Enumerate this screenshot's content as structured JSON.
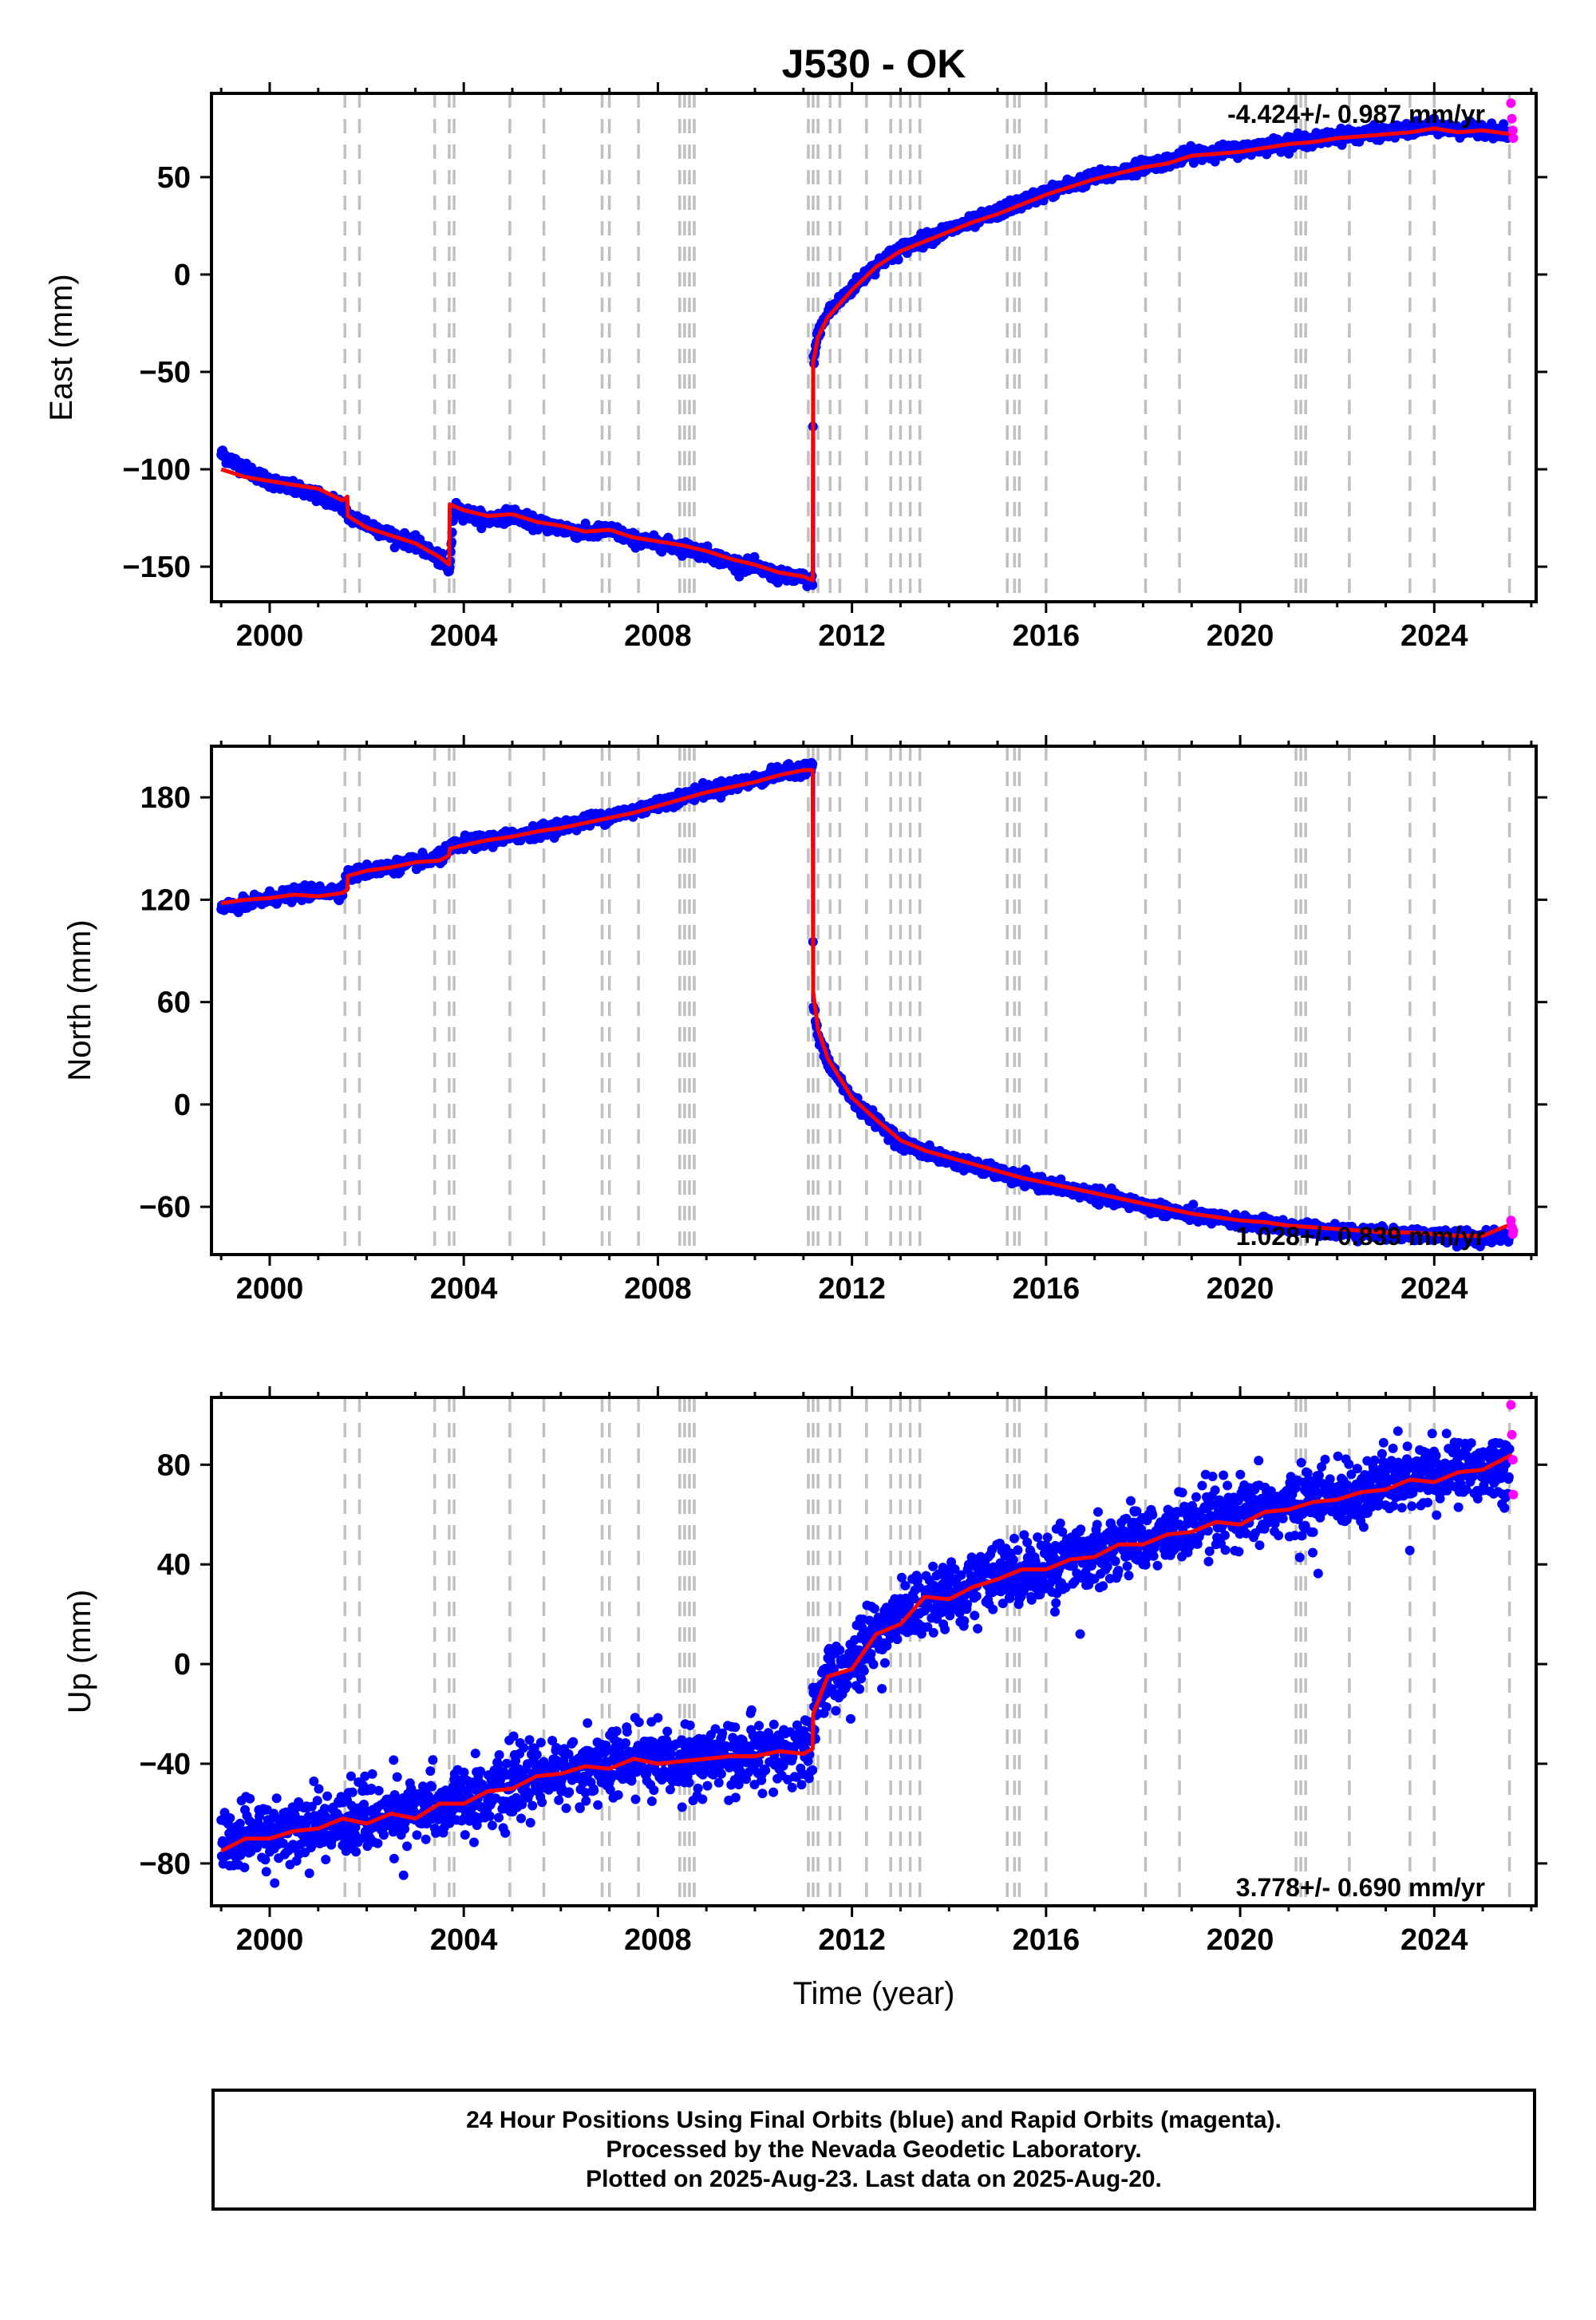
{
  "title": "J530 - OK",
  "colors": {
    "final": "#0000ff",
    "rapid": "#ff00ff",
    "model": "#ff0000",
    "event_line": "#c0c0c0",
    "frame": "#000000"
  },
  "chart_data": [
    {
      "type": "scatter",
      "panel": "east",
      "ylabel": "East (mm)",
      "xlabel": "",
      "xlim": [
        1998.8,
        2026.1
      ],
      "ylim": [
        -168,
        93
      ],
      "x_ticks": [
        2000,
        2004,
        2008,
        2012,
        2016,
        2020,
        2024
      ],
      "y_ticks": [
        -150,
        -100,
        -50,
        0,
        50
      ],
      "rate_label": "-4.424+/- 0.987 mm/yr",
      "series": [
        {
          "name": "Final Orbits",
          "color": "#0000ff",
          "x": [
            1999.0,
            1999.5,
            2000.0,
            2000.5,
            2001.0,
            2001.5,
            2001.6,
            2002.0,
            2002.5,
            2003.0,
            2003.5,
            2003.7,
            2003.8,
            2004.0,
            2004.5,
            2005.0,
            2005.5,
            2006.0,
            2006.5,
            2007.0,
            2007.5,
            2008.0,
            2008.5,
            2009.0,
            2009.5,
            2010.0,
            2010.5,
            2011.0,
            2011.19,
            2011.2,
            2011.3,
            2011.5,
            2012.0,
            2012.5,
            2013.0,
            2013.5,
            2014.0,
            2014.5,
            2015.0,
            2015.5,
            2016.0,
            2016.5,
            2017.0,
            2017.5,
            2018.0,
            2018.5,
            2019.0,
            2019.5,
            2020.0,
            2020.5,
            2021.0,
            2021.5,
            2022.0,
            2022.5,
            2023.0,
            2023.5,
            2024.0,
            2024.5,
            2025.0,
            2025.55
          ],
          "y": [
            -92,
            -100,
            -106,
            -110,
            -114,
            -118,
            -124,
            -128,
            -134,
            -138,
            -146,
            -152,
            -120,
            -122,
            -126,
            -123,
            -128,
            -130,
            -133,
            -131,
            -136,
            -138,
            -140,
            -143,
            -148,
            -150,
            -155,
            -156,
            -158,
            -45,
            -30,
            -20,
            -7,
            5,
            13,
            18,
            23,
            27,
            32,
            37,
            42,
            46,
            50,
            52,
            56,
            58,
            62,
            63,
            64,
            66,
            68,
            69,
            71,
            72,
            73,
            74,
            76,
            74,
            75,
            72
          ]
        },
        {
          "name": "Rapid Orbits",
          "color": "#ff00ff",
          "x": [
            2025.58,
            2025.6,
            2025.62,
            2025.63
          ],
          "y": [
            88,
            80,
            74,
            70
          ]
        }
      ],
      "model": {
        "name": "Model",
        "color": "#ff0000",
        "x": [
          1999.0,
          1999.5,
          2000.0,
          2000.5,
          2001.0,
          2001.5,
          2001.6,
          2001.61,
          2002.0,
          2002.5,
          2003.0,
          2003.5,
          2003.7,
          2003.71,
          2004.0,
          2004.5,
          2005.0,
          2005.5,
          2006.0,
          2006.5,
          2007.0,
          2007.5,
          2008.0,
          2008.5,
          2009.0,
          2009.5,
          2010.0,
          2010.5,
          2011.0,
          2011.19,
          2011.2,
          2011.3,
          2011.5,
          2012.0,
          2012.5,
          2013.0,
          2013.5,
          2014.0,
          2014.5,
          2015.0,
          2015.5,
          2016.0,
          2016.5,
          2017.0,
          2017.5,
          2018.0,
          2018.5,
          2019.0,
          2019.5,
          2020.0,
          2020.5,
          2021.0,
          2021.5,
          2022.0,
          2022.5,
          2023.0,
          2023.5,
          2024.0,
          2024.5,
          2025.0,
          2025.6
        ],
        "y": [
          -100,
          -104,
          -106,
          -108,
          -110,
          -116,
          -114,
          -124,
          -130,
          -134,
          -138,
          -145,
          -149,
          -118,
          -121,
          -124,
          -123,
          -127,
          -129,
          -132,
          -131,
          -135,
          -137,
          -139,
          -142,
          -146,
          -149,
          -153,
          -155,
          -157,
          -45,
          -32,
          -22,
          -8,
          4,
          12,
          17,
          22,
          27,
          31,
          36,
          41,
          45,
          49,
          52,
          55,
          57,
          61,
          62,
          63,
          65,
          67,
          68,
          70,
          71,
          72,
          73,
          75,
          73,
          74,
          72
        ]
      }
    },
    {
      "type": "scatter",
      "panel": "north",
      "ylabel": "North (mm)",
      "xlabel": "",
      "xlim": [
        1998.8,
        2026.1
      ],
      "ylim": [
        -88,
        210
      ],
      "x_ticks": [
        2000,
        2004,
        2008,
        2012,
        2016,
        2020,
        2024
      ],
      "y_ticks": [
        -60,
        0,
        60,
        120,
        180
      ],
      "rate_label": "1.028+/- 0.839 mm/yr",
      "series": [
        {
          "name": "Final Orbits",
          "color": "#0000ff",
          "x": [
            1999.0,
            1999.5,
            2000.0,
            2000.5,
            2001.0,
            2001.5,
            2001.6,
            2002.0,
            2002.5,
            2003.0,
            2003.5,
            2003.7,
            2004.0,
            2004.5,
            2005.0,
            2005.5,
            2006.0,
            2006.5,
            2007.0,
            2007.5,
            2008.0,
            2008.5,
            2009.0,
            2009.5,
            2010.0,
            2010.5,
            2011.0,
            2011.19,
            2011.2,
            2011.3,
            2011.5,
            2012.0,
            2012.5,
            2013.0,
            2013.5,
            2014.0,
            2014.5,
            2015.0,
            2015.5,
            2016.0,
            2016.5,
            2017.0,
            2017.5,
            2018.0,
            2018.5,
            2019.0,
            2019.5,
            2020.0,
            2020.5,
            2021.0,
            2021.5,
            2022.0,
            2022.5,
            2023.0,
            2023.5,
            2024.0,
            2024.5,
            2025.0,
            2025.55
          ],
          "y": [
            115,
            117,
            121,
            123,
            125,
            125,
            134,
            137,
            139,
            142,
            144,
            150,
            153,
            155,
            157,
            160,
            163,
            166,
            169,
            172,
            176,
            180,
            184,
            187,
            190,
            194,
            197,
            197,
            60,
            40,
            25,
            3,
            -10,
            -22,
            -28,
            -32,
            -36,
            -40,
            -44,
            -47,
            -50,
            -53,
            -56,
            -59,
            -62,
            -65,
            -67,
            -69,
            -70,
            -72,
            -73,
            -74,
            -75,
            -76,
            -76,
            -77,
            -78,
            -78,
            -77
          ]
        },
        {
          "name": "Rapid Orbits",
          "color": "#ff00ff",
          "x": [
            2025.58,
            2025.6,
            2025.62,
            2025.63
          ],
          "y": [
            -68,
            -72,
            -76,
            -74
          ]
        }
      ],
      "model": {
        "name": "Model",
        "color": "#ff0000",
        "x": [
          1999.0,
          1999.5,
          2000.0,
          2000.5,
          2001.0,
          2001.5,
          2001.6,
          2001.61,
          2002.0,
          2002.5,
          2003.0,
          2003.5,
          2003.7,
          2003.71,
          2004.0,
          2004.5,
          2005.0,
          2005.5,
          2006.0,
          2006.5,
          2007.0,
          2007.5,
          2008.0,
          2008.5,
          2009.0,
          2009.5,
          2010.0,
          2010.5,
          2011.0,
          2011.19,
          2011.2,
          2011.3,
          2011.5,
          2012.0,
          2012.5,
          2013.0,
          2013.5,
          2014.0,
          2014.5,
          2015.0,
          2015.5,
          2016.0,
          2016.5,
          2017.0,
          2017.5,
          2018.0,
          2018.5,
          2019.0,
          2019.5,
          2020.0,
          2020.5,
          2021.0,
          2021.5,
          2022.0,
          2022.5,
          2023.0,
          2023.5,
          2024.0,
          2024.5,
          2025.0,
          2025.6
        ],
        "y": [
          118,
          120,
          121,
          123,
          122,
          124,
          126,
          134,
          137,
          139,
          142,
          143,
          146,
          150,
          152,
          155,
          157,
          160,
          162,
          165,
          168,
          171,
          175,
          179,
          183,
          186,
          189,
          193,
          196,
          196,
          66,
          44,
          27,
          4,
          -9,
          -21,
          -27,
          -31,
          -35,
          -39,
          -43,
          -46,
          -49,
          -52,
          -55,
          -58,
          -61,
          -64,
          -66,
          -68,
          -69,
          -71,
          -72,
          -73,
          -74,
          -75,
          -75,
          -76,
          -77,
          -77,
          -70
        ]
      }
    },
    {
      "type": "scatter",
      "panel": "up",
      "ylabel": "Up (mm)",
      "xlabel": "Time (year)",
      "xlim": [
        1998.8,
        2026.1
      ],
      "ylim": [
        -97,
        107
      ],
      "x_ticks": [
        2000,
        2004,
        2008,
        2012,
        2016,
        2020,
        2024
      ],
      "y_ticks": [
        -80,
        -40,
        0,
        40,
        80
      ],
      "rate_label": "3.778+/- 0.690 mm/yr",
      "series": [
        {
          "name": "Final Orbits",
          "color": "#0000ff",
          "x": [
            1999.0,
            1999.5,
            2000.0,
            2000.5,
            2001.0,
            2001.5,
            2002.0,
            2002.5,
            2003.0,
            2003.5,
            2004.0,
            2004.5,
            2005.0,
            2005.5,
            2006.0,
            2006.5,
            2007.0,
            2007.5,
            2008.0,
            2008.5,
            2009.0,
            2009.5,
            2010.0,
            2010.5,
            2011.0,
            2011.19,
            2011.2,
            2011.5,
            2012.0,
            2012.5,
            2013.0,
            2013.5,
            2014.0,
            2014.5,
            2015.0,
            2015.5,
            2016.0,
            2016.5,
            2017.0,
            2017.5,
            2018.0,
            2018.5,
            2019.0,
            2019.5,
            2020.0,
            2020.5,
            2021.0,
            2021.5,
            2022.0,
            2022.5,
            2023.0,
            2023.5,
            2024.0,
            2024.5,
            2025.0,
            2025.55
          ],
          "y": [
            -72,
            -70,
            -68,
            -66,
            -65,
            -63,
            -62,
            -60,
            -60,
            -56,
            -55,
            -52,
            -50,
            -44,
            -43,
            -42,
            -40,
            -40,
            -38,
            -40,
            -37,
            -38,
            -36,
            -37,
            -35,
            -34,
            -18,
            -6,
            0,
            12,
            20,
            26,
            28,
            31,
            36,
            37,
            39,
            42,
            45,
            49,
            50,
            52,
            55,
            57,
            59,
            62,
            63,
            66,
            67,
            70,
            72,
            74,
            76,
            78,
            79,
            80
          ]
        },
        {
          "name": "Rapid Orbits",
          "color": "#ff00ff",
          "x": [
            2025.58,
            2025.6,
            2025.62,
            2025.63
          ],
          "y": [
            104,
            92,
            82,
            68
          ]
        }
      ],
      "model": {
        "name": "Model",
        "color": "#ff0000",
        "x": [
          1999.0,
          1999.5,
          2000.0,
          2000.5,
          2001.0,
          2001.5,
          2002.0,
          2002.5,
          2003.0,
          2003.5,
          2004.0,
          2004.5,
          2005.0,
          2005.5,
          2006.0,
          2006.5,
          2007.0,
          2007.5,
          2008.0,
          2008.5,
          2009.0,
          2009.5,
          2010.0,
          2010.5,
          2011.0,
          2011.19,
          2011.2,
          2011.5,
          2012.0,
          2012.5,
          2013.0,
          2013.5,
          2014.0,
          2014.5,
          2015.0,
          2015.5,
          2016.0,
          2016.5,
          2017.0,
          2017.5,
          2018.0,
          2018.5,
          2019.0,
          2019.5,
          2020.0,
          2020.5,
          2021.0,
          2021.5,
          2022.0,
          2022.5,
          2023.0,
          2023.5,
          2024.0,
          2024.5,
          2025.0,
          2025.6
        ],
        "y": [
          -75,
          -70,
          -70,
          -67,
          -66,
          -62,
          -64,
          -60,
          -62,
          -56,
          -56,
          -51,
          -50,
          -45,
          -44,
          -41,
          -42,
          -38,
          -40,
          -39,
          -38,
          -37,
          -37,
          -35,
          -36,
          -34,
          -20,
          -5,
          -2,
          12,
          16,
          27,
          26,
          31,
          34,
          38,
          38,
          42,
          43,
          48,
          48,
          52,
          53,
          57,
          56,
          61,
          62,
          65,
          66,
          69,
          70,
          74,
          73,
          77,
          78,
          84
        ]
      }
    }
  ],
  "event_lines": [
    2001.55,
    2001.85,
    2003.4,
    2003.7,
    2003.8,
    2004.95,
    2005.65,
    2006.85,
    2007.0,
    2007.6,
    2008.45,
    2008.55,
    2008.65,
    2008.75,
    2011.1,
    2011.2,
    2011.3,
    2011.55,
    2011.75,
    2012.3,
    2012.8,
    2013.0,
    2013.2,
    2013.4,
    2015.2,
    2015.35,
    2015.45,
    2016.0,
    2018.05,
    2018.75,
    2021.15,
    2021.25,
    2021.35,
    2022.25,
    2023.5,
    2024.0,
    2025.55
  ],
  "footer": {
    "line1": "24 Hour Positions Using Final Orbits (blue) and Rapid Orbits (magenta).",
    "line2": "Processed by the Nevada Geodetic Laboratory.",
    "line3": "Plotted on 2025-Aug-23. Last data on 2025-Aug-20."
  }
}
